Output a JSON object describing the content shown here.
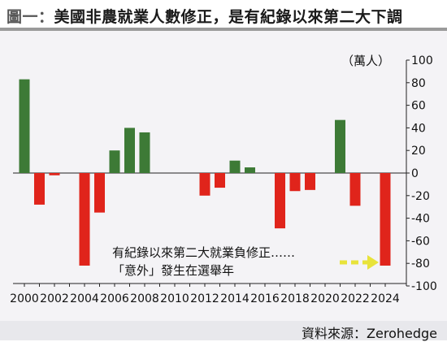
{
  "header": {
    "label": "圖一",
    "separator": "：",
    "title": "美國非農就業人數修正，是有紀錄以來第二大下調"
  },
  "source": "資料來源：Zerohedge",
  "chart_data": {
    "type": "bar",
    "unit_label": "（萬人）",
    "x": [
      2000,
      2001,
      2002,
      2003,
      2004,
      2005,
      2006,
      2007,
      2008,
      2009,
      2010,
      2011,
      2012,
      2013,
      2014,
      2015,
      2016,
      2017,
      2018,
      2019,
      2020,
      2021,
      2022,
      2023,
      2024
    ],
    "values": [
      83,
      -28,
      -2,
      0,
      -82,
      -35,
      20,
      40,
      36,
      0,
      0,
      0,
      -20,
      -13,
      11,
      5,
      0,
      -49,
      -16,
      -15,
      0,
      47,
      -29,
      0,
      -82
    ],
    "x_ticks": [
      "2000",
      "2002",
      "2004",
      "2006",
      "2008",
      "2010",
      "2012",
      "2014",
      "2016",
      "2018",
      "2020",
      "2022",
      "2024"
    ],
    "y_ticks": [
      "100",
      "80",
      "60",
      "40",
      "20",
      "0",
      "-20",
      "-40",
      "-60",
      "-80",
      "-100"
    ],
    "ylim": [
      -100,
      100
    ],
    "annotation": [
      "有紀錄以來第二大就業負修正……",
      "「意外」發生在選舉年"
    ],
    "colors": {
      "positive": "#3d7a36",
      "negative": "#e0241b",
      "arrow": "#e8e33a"
    }
  }
}
